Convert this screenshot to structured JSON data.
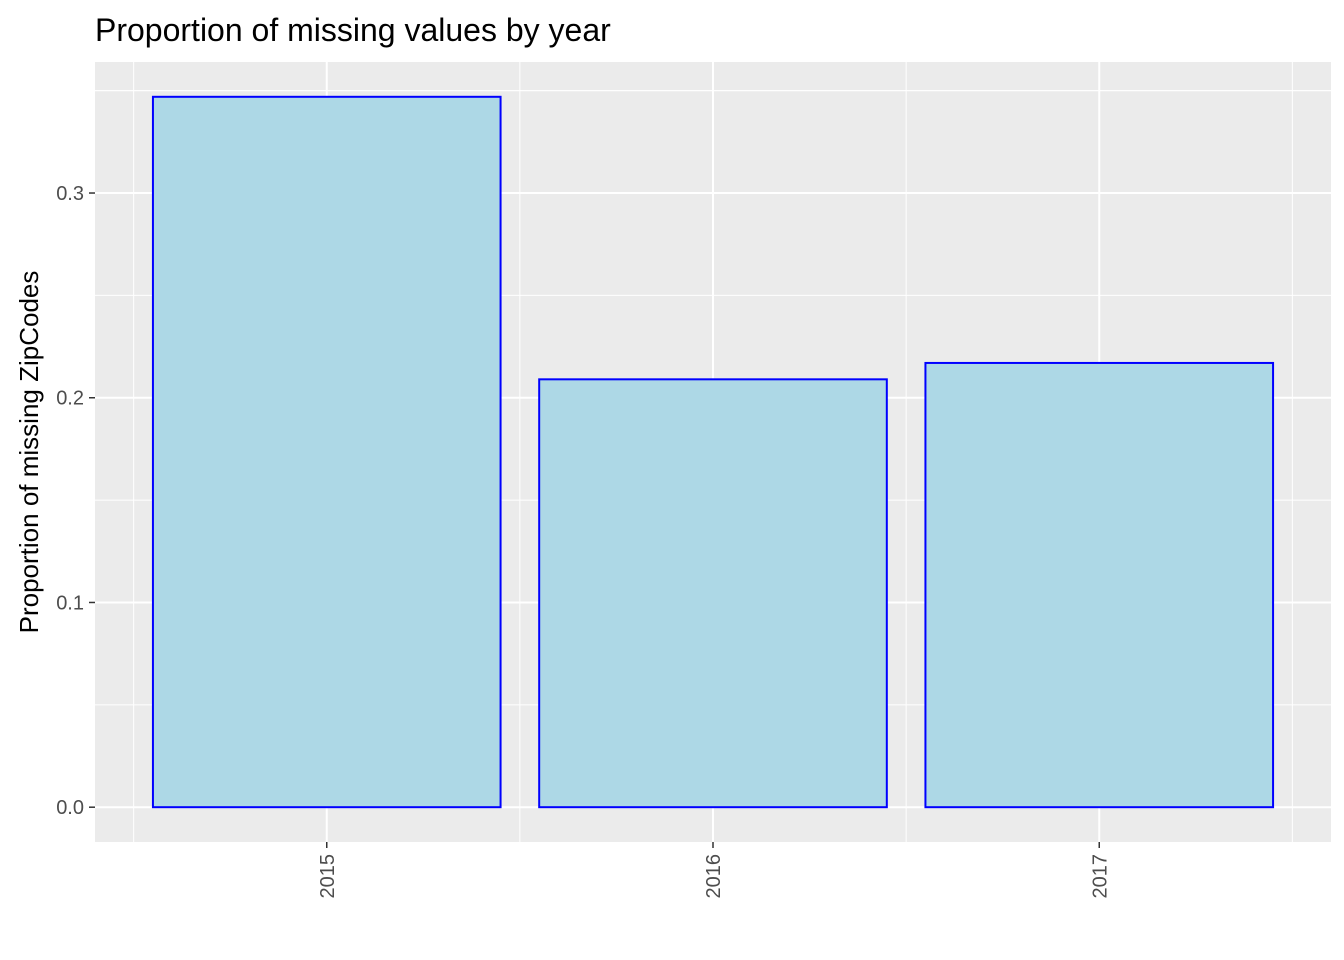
{
  "chart_data": {
    "type": "bar",
    "title": "Proportion of missing values by year",
    "xlabel": "",
    "ylabel": "Proportion of missing ZipCodes",
    "categories": [
      "2015",
      "2016",
      "2017"
    ],
    "values": [
      0.347,
      0.209,
      0.217
    ],
    "ylim": [
      -0.017,
      0.364
    ],
    "yticks": [
      0.0,
      0.1,
      0.2,
      0.3
    ],
    "ytick_labels": [
      "0.0",
      "0.1",
      "0.2",
      "0.3"
    ],
    "x_tick_rotation": "vertical",
    "grid": true,
    "colors": {
      "panel_background": "#ebebeb",
      "grid_major": "#ffffff",
      "bar_fill": "#add8e6",
      "bar_outline": "#0000ff",
      "tick_mark": "#333333",
      "tick_text": "#4d4d4d"
    }
  }
}
